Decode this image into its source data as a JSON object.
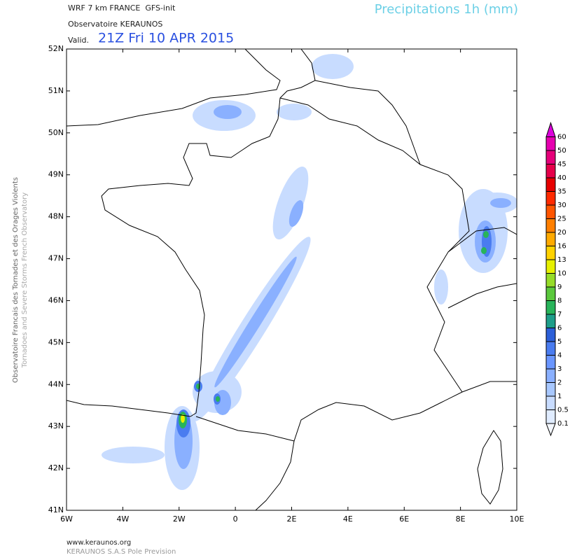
{
  "header": {
    "model": "WRF 7 km FRANCE  GFS-init",
    "org": "Observatoire KERAUNOS",
    "valid_label": "Valid.",
    "valid_time": "21Z Fri 10 APR 2015",
    "product": "Precipitations 1h (mm)"
  },
  "side_text": [
    "Observatoire Francais des Tornades et des Orages Violents",
    "Tornadoes and Severe Storms French Observatory"
  ],
  "lat_labels": [
    "52N",
    "51N",
    "50N",
    "49N",
    "48N",
    "47N",
    "46N",
    "45N",
    "44N",
    "43N",
    "42N",
    "41N"
  ],
  "lon_labels": [
    "6W",
    "4W",
    "2W",
    "0",
    "2E",
    "4E",
    "6E",
    "8E",
    "10E"
  ],
  "colorbar": {
    "labels": [
      "0.1",
      "0.5",
      "1",
      "2",
      "3",
      "4",
      "5",
      "6",
      "7",
      "8",
      "9",
      "10",
      "13",
      "16",
      "20",
      "25",
      "30",
      "35",
      "40",
      "45",
      "50",
      "60"
    ],
    "colors": [
      "#f4f8ff",
      "#e0ecff",
      "#c8dcff",
      "#a8c8ff",
      "#8ab0ff",
      "#6a96ff",
      "#4a7cf0",
      "#2c5fd8",
      "#1e9e8a",
      "#28b45a",
      "#5ac83c",
      "#96dc28",
      "#e6f000",
      "#ffd200",
      "#ffaa00",
      "#ff7f00",
      "#ff5500",
      "#ff2a00",
      "#e60000",
      "#e6004a",
      "#e6007a",
      "#e600b0",
      "#dc00dc"
    ]
  },
  "footer": {
    "url": "www.keraunos.org",
    "company": "KERAUNOS S.A.S Pole Prevision"
  }
}
